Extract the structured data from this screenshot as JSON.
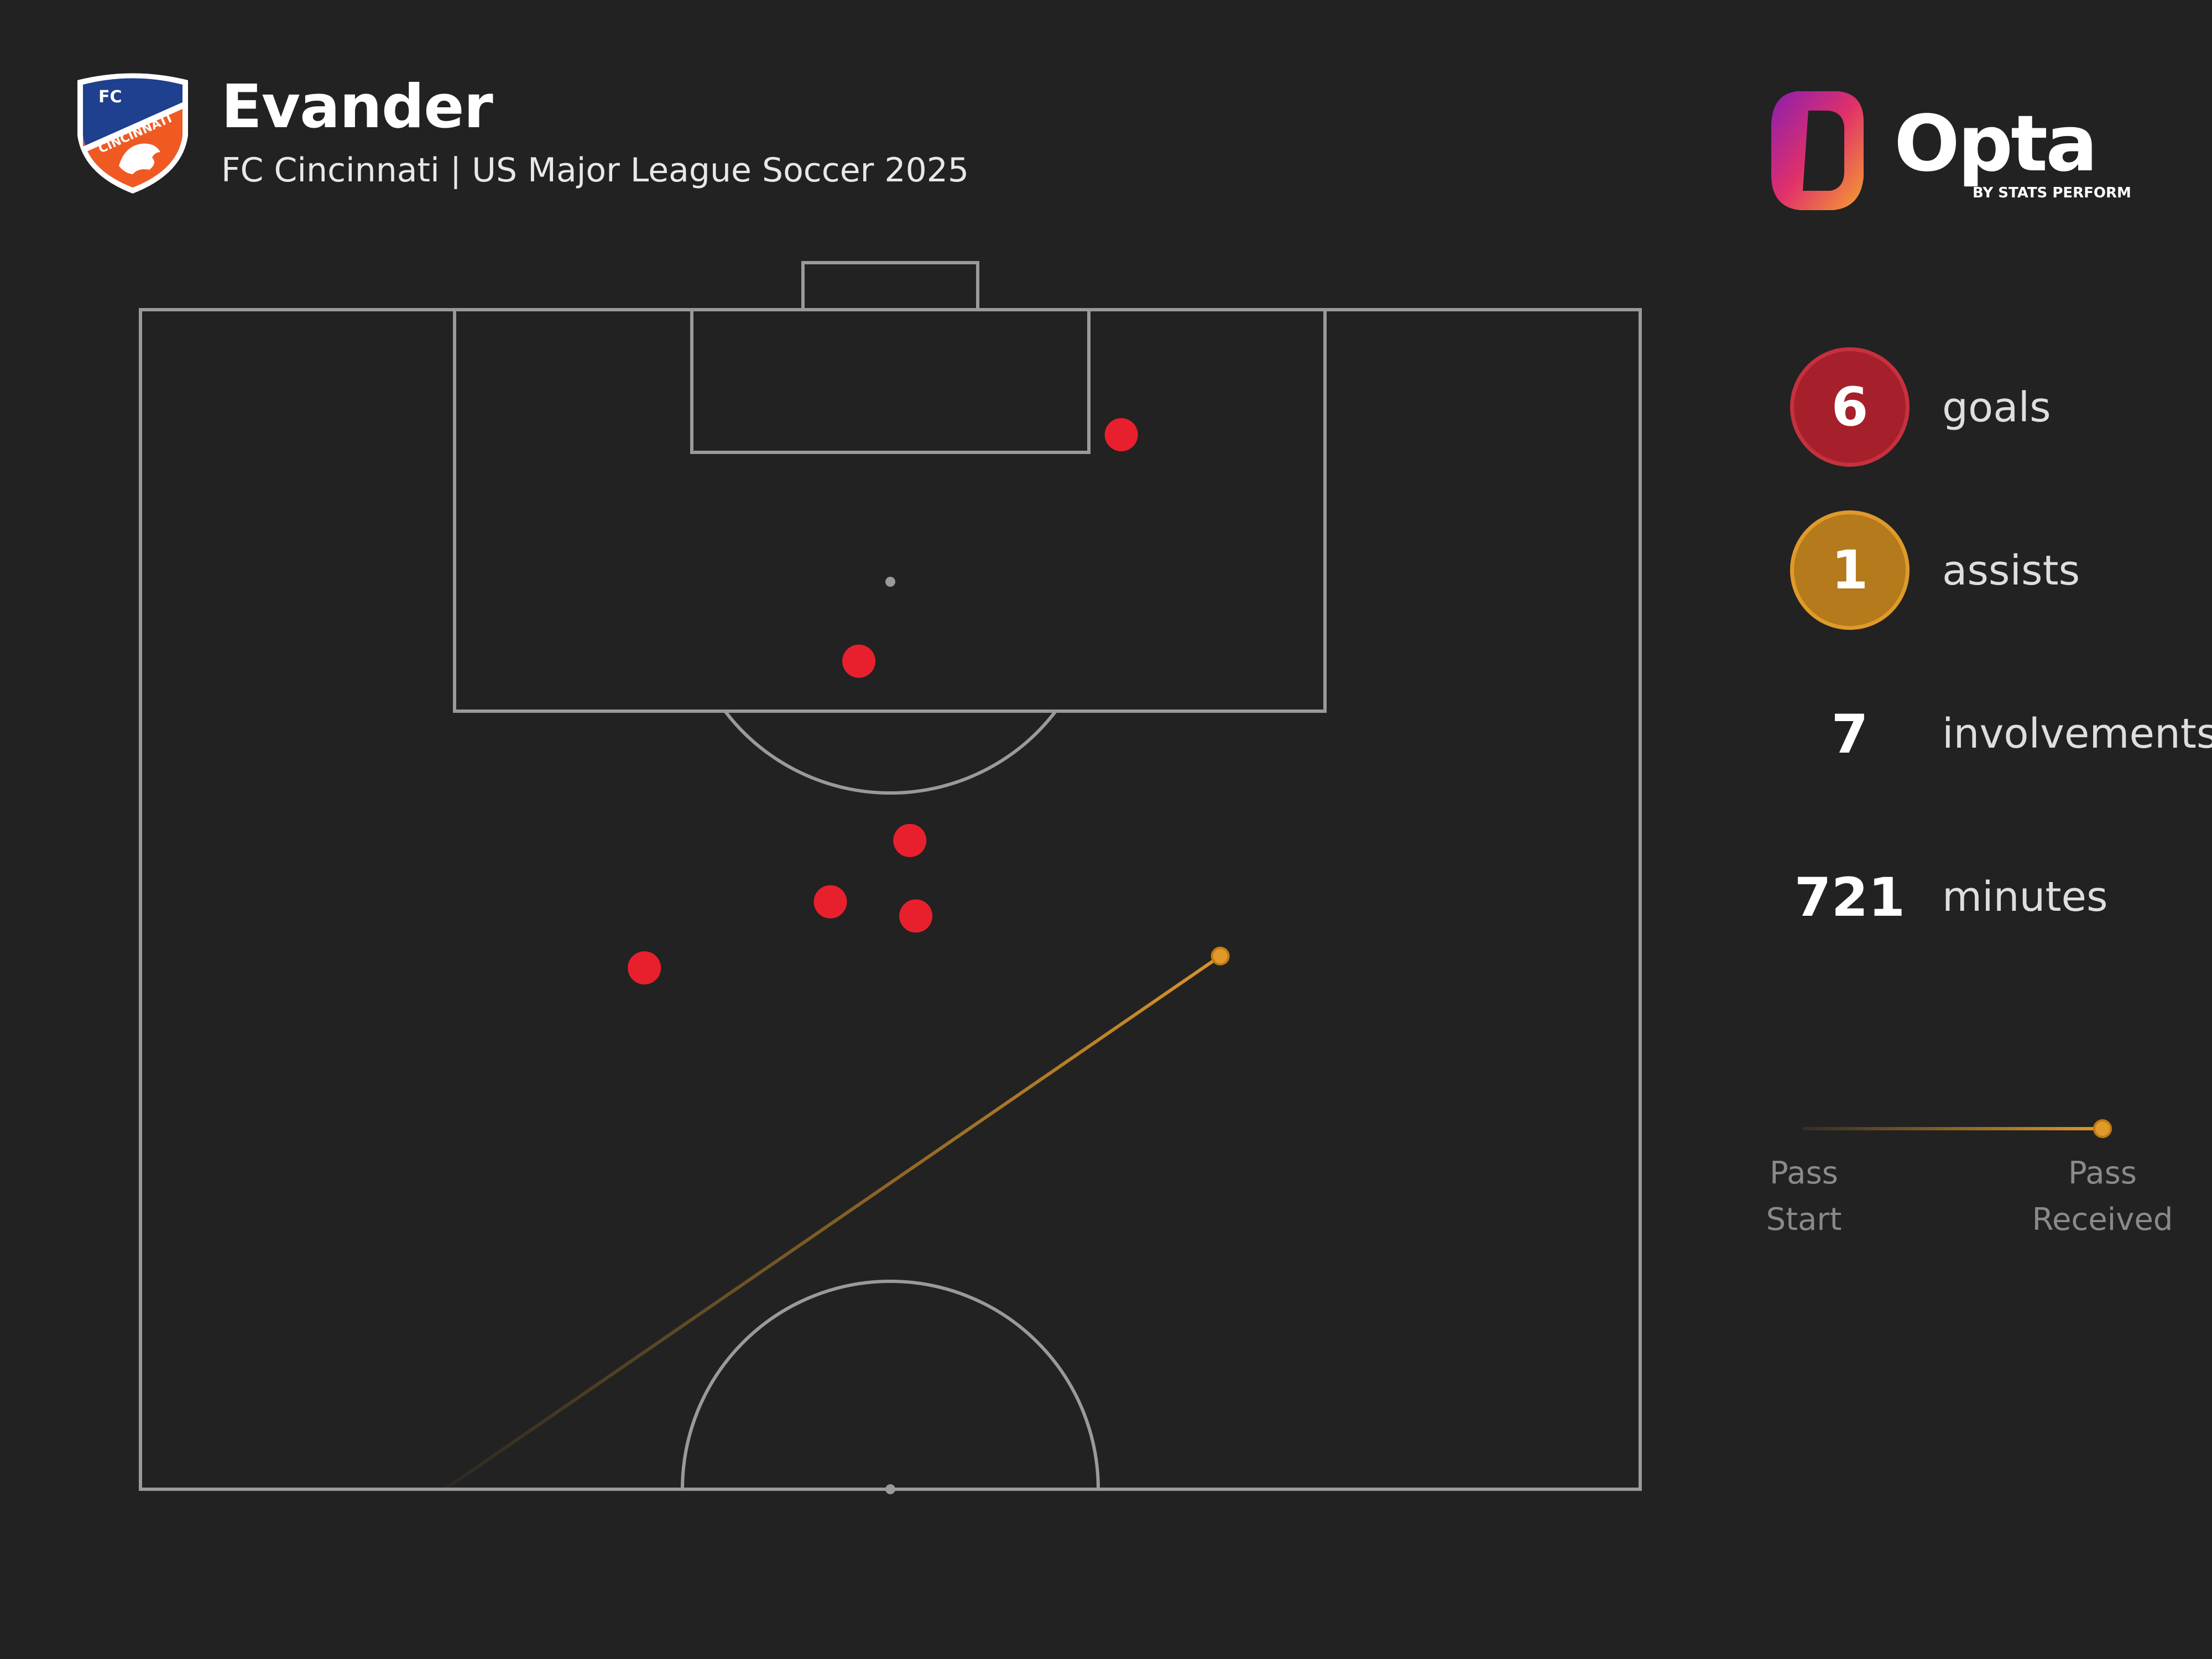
{
  "header": {
    "player_name": "Evander",
    "subtitle": "FC Cincinnati | US Major League Soccer 2025",
    "crest": {
      "text_top": "FC",
      "text_arc": "CINCINNATI",
      "colors": {
        "blue": "#1f3f8f",
        "orange": "#f05a22",
        "white": "#ffffff"
      }
    },
    "brand": {
      "name": "Opta",
      "tagline": "BY STATS PERFORM"
    }
  },
  "stats": [
    {
      "value": "6",
      "label": "goals",
      "color": "#a6202b"
    },
    {
      "value": "1",
      "label": "assists",
      "color": "#b57a1c"
    },
    {
      "value": "7",
      "label": "involvements"
    },
    {
      "value": "721",
      "label": "minutes"
    }
  ],
  "legend": {
    "start_label": "Pass Start",
    "end_label": "Pass Received",
    "line_color": "#e09a2a"
  },
  "colors": {
    "background": "#222222",
    "pitch_lines": "#9a9a9a",
    "goal_marker": "#e8202e",
    "assist_line": "#e09a2a"
  },
  "pitch_events": {
    "goals": [
      {
        "x": 65.4,
        "y": 94.7
      },
      {
        "x": 47.9,
        "y": 85.1
      },
      {
        "x": 51.3,
        "y": 77.5
      },
      {
        "x": 46.0,
        "y": 74.9
      },
      {
        "x": 51.7,
        "y": 74.3
      },
      {
        "x": 33.6,
        "y": 72.1
      }
    ],
    "assists": [
      {
        "start_x": 20.3,
        "start_y": 50.0,
        "end_x": 72.0,
        "end_y": 72.6
      }
    ]
  }
}
